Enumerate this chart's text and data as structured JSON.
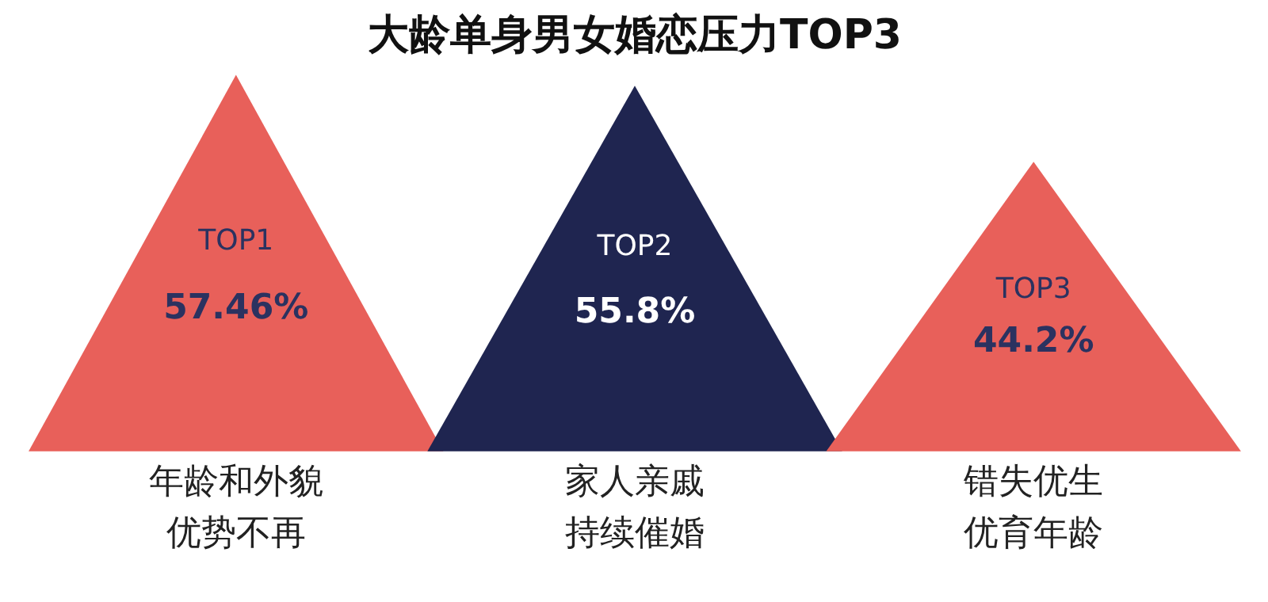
{
  "chart_data": {
    "type": "other",
    "title": "大龄单身男女婚恋压力TOP3",
    "categories": [
      "年龄和外貌优势不再",
      "家人亲戚持续催婚",
      "错失优生优育年龄"
    ],
    "values": [
      57.46,
      55.8,
      44.2
    ],
    "colors": [
      "#e8605a",
      "#1f2550",
      "#e8605a"
    ],
    "value_labels": [
      "57.46%",
      "55.8%",
      "44.2%"
    ],
    "annotations": [
      "TOP1",
      "TOP2",
      "TOP3"
    ]
  }
}
